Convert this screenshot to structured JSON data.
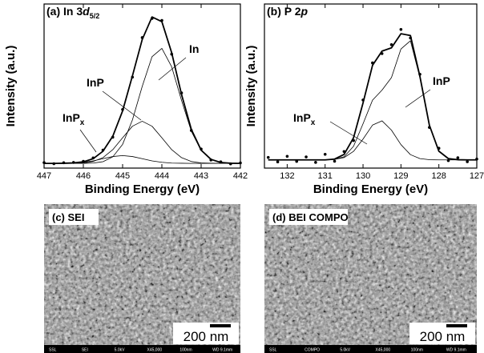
{
  "chart_data": [
    {
      "type": "line",
      "title": [
        "(a) In 3",
        "d",
        "5/2"
      ],
      "x_label": "Binding Energy (eV)",
      "y_label": "Intensity (a.u.)",
      "xlim": [
        447,
        442
      ],
      "xticks": [
        447,
        446,
        445,
        444,
        443,
        442
      ],
      "ylim": [
        0,
        105
      ],
      "x": [
        447,
        446.75,
        446.5,
        446.25,
        446,
        445.75,
        445.5,
        445.25,
        445,
        444.75,
        444.5,
        444.25,
        444,
        443.75,
        443.5,
        443.25,
        443,
        442.75,
        442.5,
        442.25,
        442
      ],
      "series": [
        {
          "style": "markers",
          "color": "#000000",
          "values": [
            3.5,
            2.8,
            3.4,
            3.6,
            4.3,
            6.5,
            11.5,
            19.8,
            37.5,
            58.2,
            83.5,
            95.8,
            94.5,
            72.9,
            48.1,
            24.1,
            12.2,
            5.2,
            4.0,
            2.7,
            3.3
          ]
        },
        {
          "style": "envelope",
          "color": "#000000",
          "values": [
            3,
            3,
            3.1,
            3.3,
            4.0,
            6.0,
            10.8,
            20.4,
            36.6,
            59.0,
            82.3,
            96.7,
            93.7,
            73.8,
            47.2,
            24.8,
            11.5,
            5.6,
            3.6,
            3.1,
            3
          ]
        },
        {
          "style": "component",
          "color": "#000000",
          "values": [
            3,
            3,
            3,
            3,
            3,
            3.2,
            4.1,
            7.2,
            15.2,
            30.8,
            52.3,
            71.3,
            76.6,
            64.8,
            43.4,
            23.6,
            11.2,
            5.5,
            3.6,
            3.1,
            3
          ]
        },
        {
          "style": "component",
          "color": "#000000",
          "values": [
            3,
            3,
            3,
            3.1,
            3.3,
            4.2,
            6.7,
            11.8,
            19.4,
            26.8,
            30,
            26.8,
            19.4,
            11.8,
            6.7,
            4.2,
            3.3,
            3.1,
            3,
            3,
            3
          ]
        },
        {
          "style": "component",
          "color": "#000000",
          "values": [
            3,
            3,
            3.1,
            3.2,
            3.7,
            4.6,
            6,
            7.4,
            8,
            7.4,
            6,
            4.6,
            3.7,
            3.2,
            3.1,
            3,
            3,
            3,
            3,
            3,
            3
          ]
        }
      ],
      "annotations": [
        {
          "text": "In"
        },
        {
          "text": "InP"
        },
        {
          "text": "InP",
          "sub": "x"
        }
      ]
    },
    {
      "type": "line",
      "title": [
        "(b) P 2",
        "p"
      ],
      "x_label": "Binding Energy (eV)",
      "y_label": "Intensity (a.u.)",
      "xlim": [
        132.6,
        127
      ],
      "xticks": [
        132,
        131,
        130,
        129,
        128,
        127
      ],
      "ylim": [
        0,
        100
      ],
      "x": [
        132.5,
        132.25,
        132,
        131.75,
        131.5,
        131.25,
        131,
        130.75,
        130.5,
        130.25,
        130,
        129.75,
        129.5,
        129.25,
        129,
        128.75,
        128.5,
        128.25,
        128,
        127.75,
        127.5,
        127.25,
        127
      ],
      "series": [
        {
          "style": "markers",
          "color": "#000000",
          "values": [
            6.5,
            3.8,
            7.2,
            4.1,
            6.8,
            3.5,
            8.4,
            4.2,
            10.1,
            16.8,
            41.5,
            64.1,
            69.8,
            75.2,
            84.5,
            79.3,
            57.2,
            24.8,
            12.1,
            4.6,
            6.3,
            3.9,
            5.5
          ]
        },
        {
          "style": "envelope",
          "color": "#000000",
          "values": [
            5,
            5,
            5,
            5,
            5,
            5,
            5,
            5.5,
            8.3,
            18.5,
            39.7,
            62.6,
            71.3,
            73.3,
            81.9,
            80.8,
            55.9,
            26.1,
            10.3,
            5.8,
            5.1,
            5,
            5
          ]
        },
        {
          "style": "component",
          "color": "#000000",
          "values": [
            5,
            5,
            5,
            5,
            5,
            5,
            5,
            5.3,
            6.9,
            13.3,
            27.0,
            41.4,
            47.5,
            55.2,
            72.6,
            77.6,
            55.1,
            26.0,
            10.3,
            5.8,
            5.1,
            5,
            5
          ]
        },
        {
          "style": "component",
          "color": "#000000",
          "values": [
            5,
            5,
            5,
            5,
            5,
            5,
            5,
            5.3,
            6.4,
            10.2,
            17.7,
            26.2,
            28.8,
            23.1,
            14.3,
            8.2,
            5.8,
            5.1,
            5,
            5,
            5,
            5,
            5
          ]
        }
      ],
      "annotations": [
        {
          "text": "InP"
        },
        {
          "text": "InP",
          "sub": "x"
        }
      ]
    }
  ],
  "images": [
    {
      "label": "(c) SEI",
      "scale_bar": "200 nm",
      "info_bar": [
        "SSL",
        "SEI",
        "5.0kV",
        "X45,000",
        "100nm",
        "WD 9.1mm"
      ]
    },
    {
      "label": "(d) BEI COMPO",
      "scale_bar": "200 nm",
      "info_bar": [
        "SSL",
        "COMPO",
        "5.0kV",
        "X45,000",
        "100nm",
        "WD 9.1mm"
      ]
    }
  ]
}
